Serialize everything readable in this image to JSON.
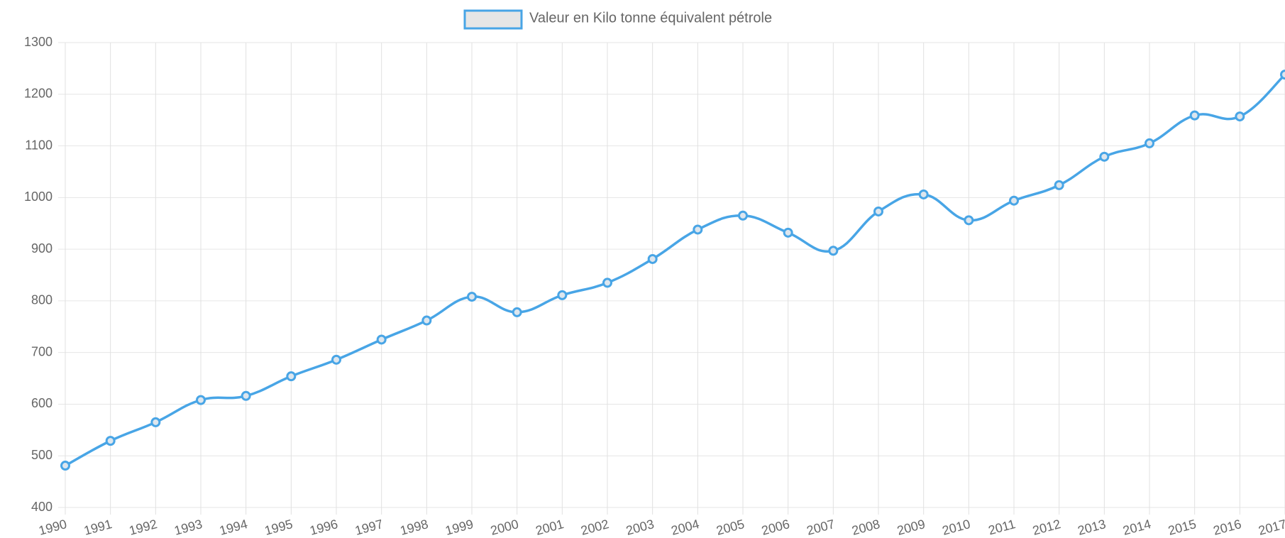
{
  "chart_data": {
    "type": "line",
    "categories": [
      "1990",
      "1991",
      "1992",
      "1993",
      "1994",
      "1995",
      "1996",
      "1997",
      "1998",
      "1999",
      "2000",
      "2001",
      "2002",
      "2003",
      "2004",
      "2005",
      "2006",
      "2007",
      "2008",
      "2009",
      "2010",
      "2011",
      "2012",
      "2013",
      "2014",
      "2015",
      "2016",
      "2017"
    ],
    "series": [
      {
        "name": "Valeur en Kilo tonne équivalent pétrole",
        "color": "#48a5e6",
        "values": [
          481,
          529,
          565,
          608,
          616,
          654,
          686,
          725,
          762,
          808,
          778,
          811,
          835,
          881,
          938,
          965,
          932,
          897,
          973,
          1006,
          956,
          994,
          1024,
          1079,
          1105,
          1159,
          1157,
          1238
        ]
      }
    ],
    "ylim": [
      400,
      1300
    ],
    "yticks": [
      400,
      500,
      600,
      700,
      800,
      900,
      1000,
      1100,
      1200,
      1300
    ],
    "grid": true,
    "legend": "top"
  }
}
